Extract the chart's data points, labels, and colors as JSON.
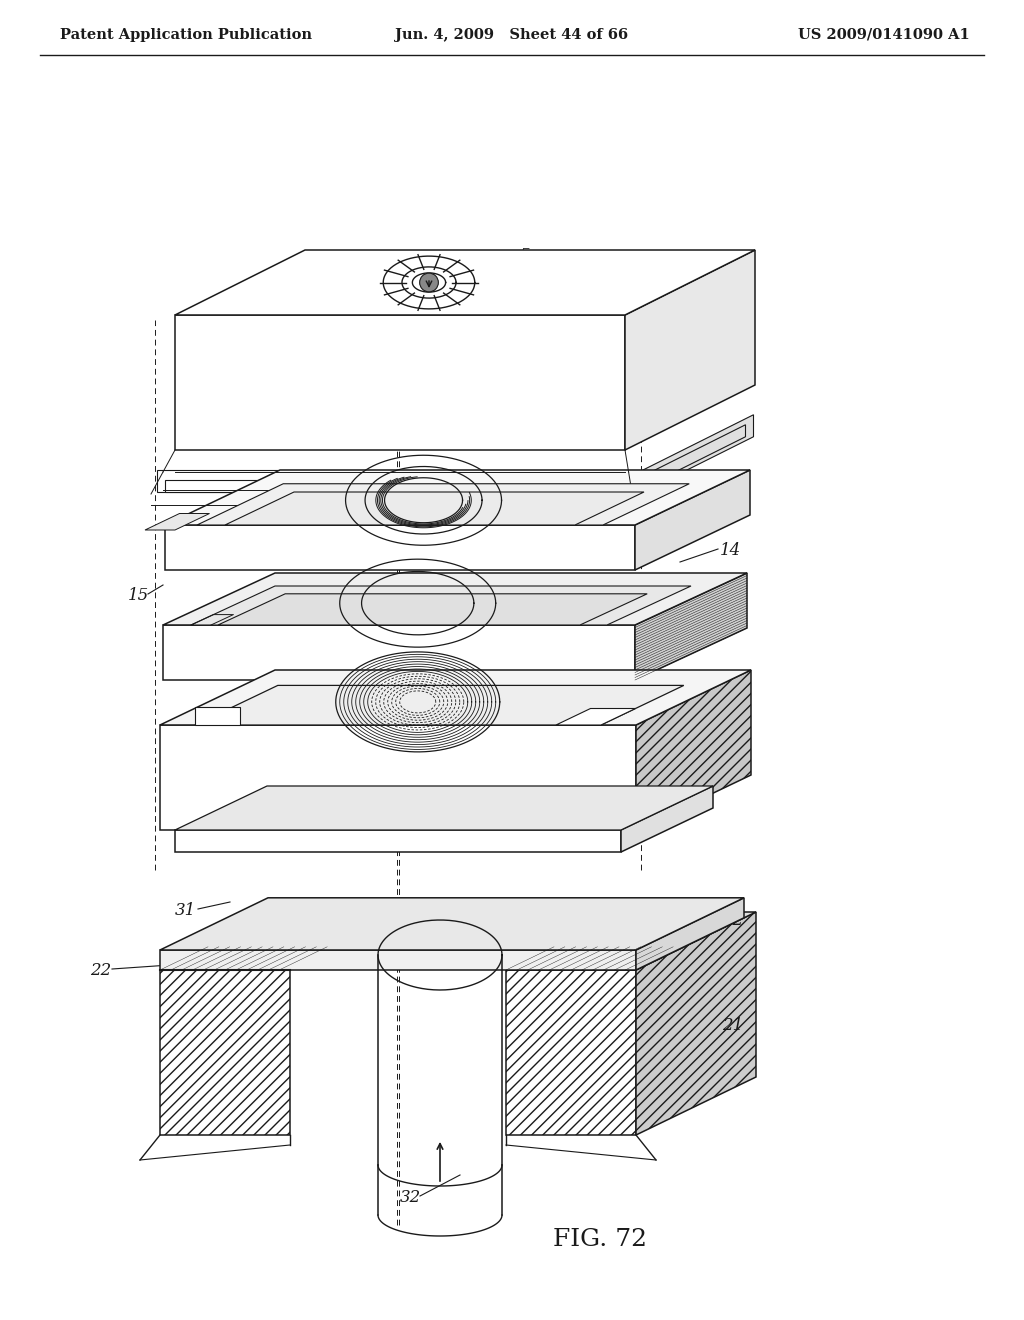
{
  "header_left": "Patent Application Publication",
  "header_center": "Jun. 4, 2009   Sheet 44 of 66",
  "header_right": "US 2009/0141090 A1",
  "figure_label": "FIG. 72",
  "bg_color": "#ffffff",
  "line_color": "#1a1a1a",
  "label_color": "#000000",
  "header_fontsize": 10.5,
  "label_fontsize": 12,
  "fig_label_fontsize": 18
}
